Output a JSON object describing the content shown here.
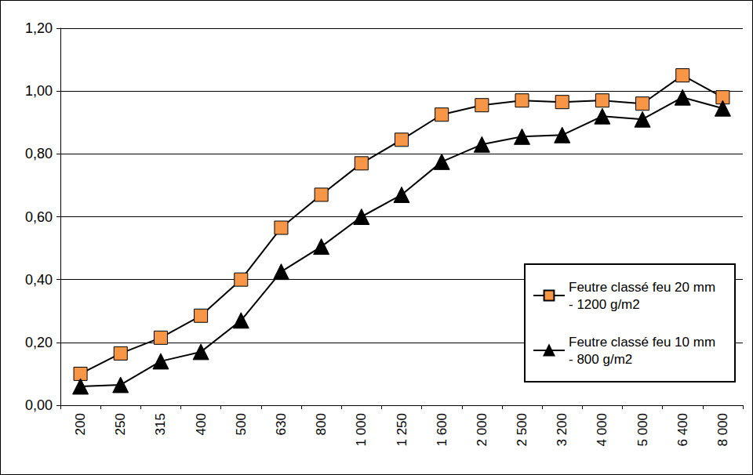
{
  "chart_data": {
    "type": "line",
    "categories": [
      "200",
      "250",
      "315",
      "400",
      "500",
      "630",
      "800",
      "1 000",
      "1 250",
      "1 600",
      "2 000",
      "2 500",
      "3 200",
      "4 000",
      "5 000",
      "6 400",
      "8 000"
    ],
    "series": [
      {
        "name": "Feutre classé feu 20 mm - 1200 g/m2",
        "color": "#f79646",
        "marker": "square",
        "values": [
          0.1,
          0.165,
          0.215,
          0.285,
          0.4,
          0.565,
          0.67,
          0.77,
          0.845,
          0.925,
          0.955,
          0.97,
          0.965,
          0.97,
          0.96,
          1.05,
          0.98
        ]
      },
      {
        "name": "Feutre classé feu 10 mm - 800 g/m2",
        "color": "#000000",
        "marker": "triangle",
        "values": [
          0.06,
          0.065,
          0.14,
          0.17,
          0.27,
          0.425,
          0.505,
          0.6,
          0.67,
          0.775,
          0.83,
          0.855,
          0.86,
          0.92,
          0.91,
          0.98,
          0.945
        ]
      }
    ],
    "ylim": [
      0,
      1.2
    ],
    "yticks": [
      {
        "value": 0,
        "label": "0,00"
      },
      {
        "value": 0.2,
        "label": "0,20"
      },
      {
        "value": 0.4,
        "label": "0,40"
      },
      {
        "value": 0.6,
        "label": "0,60"
      },
      {
        "value": 0.8,
        "label": "0,80"
      },
      {
        "value": 1.0,
        "label": "1,00"
      },
      {
        "value": 1.2,
        "label": "1,20"
      }
    ],
    "grid": true,
    "legend": "lower right"
  }
}
